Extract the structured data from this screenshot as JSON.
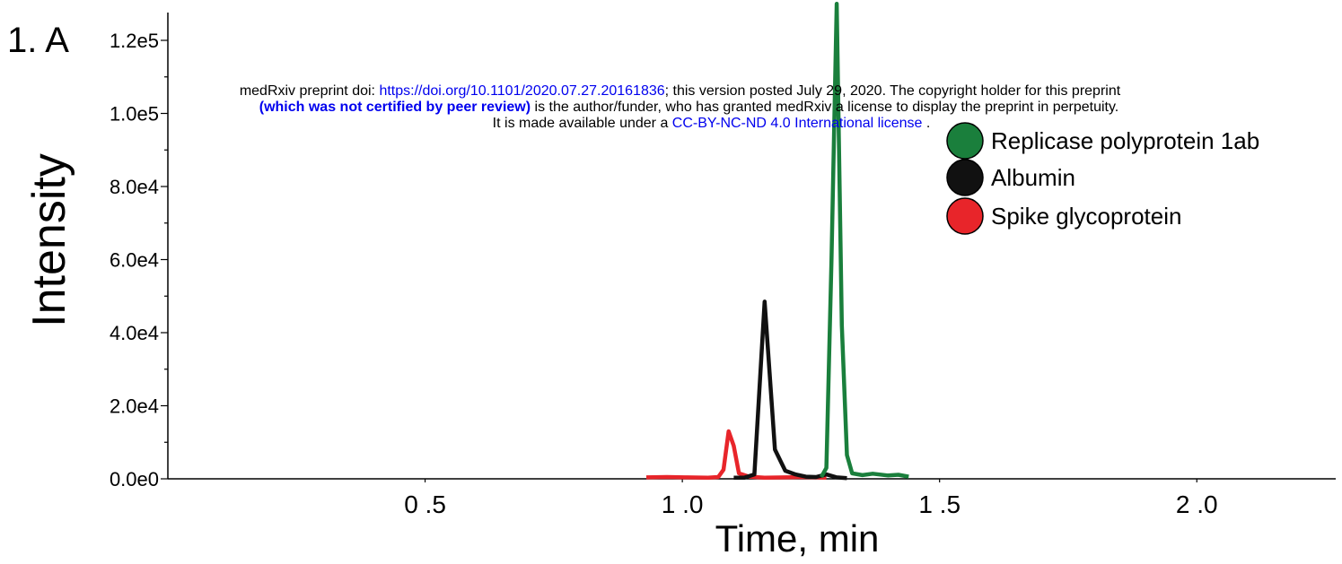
{
  "panel_label": "1. A",
  "notice": {
    "line1_prefix": "medRxiv preprint doi: ",
    "doi_link": "https://doi.org/10.1101/2020.07.27.20161836",
    "line1_suffix": "; this version posted July 29, 2020. The copyright holder for this preprint",
    "line2_bold": "(which was not certified by peer review)",
    "line2_suffix": " is the author/funder, who has granted medRxiv a license to display the preprint in perpetuity.",
    "line3_prefix": "It is made available under a ",
    "license_link": "CC-BY-NC-ND 4.0 International license",
    "line3_suffix": " ."
  },
  "chart_data": {
    "type": "line",
    "xlabel": "Time, min",
    "ylabel": "Intensity",
    "xlim": [
      0.0,
      2.27
    ],
    "ylim": [
      0,
      128000
    ],
    "y_ticks": [
      0,
      20000,
      40000,
      60000,
      80000,
      100000,
      120000
    ],
    "y_tick_labels": [
      "0.0e0",
      "2.0e4",
      "4.0e4",
      "6.0e4",
      "8.0e4",
      "1.0e5",
      "1.2e5"
    ],
    "x_ticks": [
      0.5,
      1.0,
      1.5,
      2.0
    ],
    "x_tick_labels": [
      "0 .5",
      "1 .0",
      "1 .5",
      "2 .0"
    ],
    "grid": false,
    "legend_position": "top-right",
    "series": [
      {
        "name": "Replicase polyprotein 1ab",
        "color": "#1a7f3c",
        "x": [
          1.27,
          1.28,
          1.29,
          1.3,
          1.31,
          1.32,
          1.33,
          1.35,
          1.37,
          1.4,
          1.42,
          1.44
        ],
        "y": [
          500,
          3000,
          60000,
          130000,
          42000,
          6500,
          1500,
          1000,
          1400,
          900,
          1100,
          600
        ]
      },
      {
        "name": "Albumin",
        "color": "#111111",
        "x": [
          1.1,
          1.12,
          1.14,
          1.16,
          1.18,
          1.2,
          1.22,
          1.24,
          1.26,
          1.28,
          1.3,
          1.32
        ],
        "y": [
          300,
          300,
          1200,
          48500,
          8000,
          2200,
          1200,
          600,
          500,
          1200,
          400,
          200
        ]
      },
      {
        "name": "Spike glycoprotein",
        "color": "#e8252a",
        "x": [
          0.93,
          0.97,
          1.01,
          1.05,
          1.07,
          1.08,
          1.09,
          1.1,
          1.11,
          1.13,
          1.16,
          1.2,
          1.24,
          1.28
        ],
        "y": [
          400,
          500,
          400,
          300,
          500,
          2500,
          13000,
          9000,
          1500,
          600,
          300,
          400,
          500,
          300
        ]
      }
    ]
  }
}
